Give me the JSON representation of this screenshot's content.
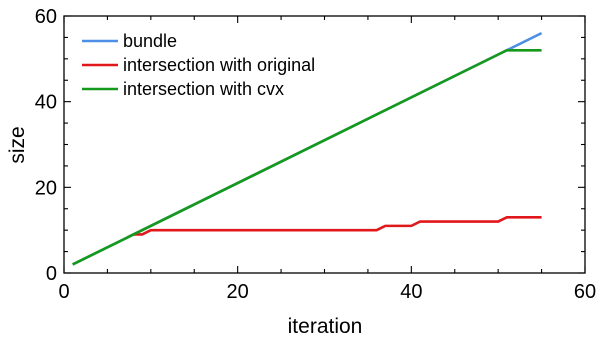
{
  "chart_data": {
    "type": "line",
    "xlabel": "iteration",
    "ylabel": "size",
    "xlim": [
      0,
      60
    ],
    "ylim": [
      0,
      60
    ],
    "xticks": [
      0,
      20,
      40,
      60
    ],
    "yticks": [
      0,
      20,
      40,
      60
    ],
    "legend_placement": "top-left",
    "grid": false,
    "series": [
      {
        "name": "bundle",
        "color": "#4d8ee6",
        "x": [
          1,
          55
        ],
        "y": [
          2,
          56
        ]
      },
      {
        "name": "intersection with original",
        "color": "#e0181b",
        "x": [
          8,
          9,
          10,
          36,
          37,
          40,
          41,
          50,
          51,
          55
        ],
        "y": [
          9,
          9,
          10,
          10,
          11,
          11,
          12,
          12,
          13,
          13
        ]
      },
      {
        "name": "intersection with cvx",
        "color": "#15991a",
        "x": [
          1,
          51,
          55
        ],
        "y": [
          2,
          52,
          52
        ]
      }
    ]
  }
}
